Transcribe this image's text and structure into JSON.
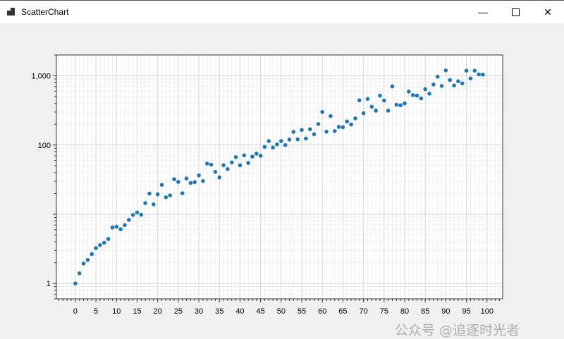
{
  "window": {
    "title": "ScatterChart",
    "minimize_icon": "minimize-icon",
    "maximize_icon": "maximize-icon",
    "close_icon": "close-icon"
  },
  "watermark": "公众号 @追逐时光者",
  "chart_data": {
    "type": "scatter",
    "title": "",
    "xlabel": "",
    "ylabel": "",
    "x_scale": "linear",
    "y_scale": "log",
    "xlim": [
      -4.6,
      103.8
    ],
    "ylim": [
      0.6,
      2000
    ],
    "x_ticks": [
      0,
      5,
      10,
      15,
      20,
      25,
      30,
      35,
      40,
      45,
      50,
      55,
      60,
      65,
      70,
      75,
      80,
      85,
      90,
      95,
      100
    ],
    "x_tick_labels": [
      "0",
      "5",
      "10",
      "15",
      "20",
      "25",
      "30",
      "35",
      "40",
      "45",
      "50",
      "55",
      "60",
      "65",
      "70",
      "75",
      "80",
      "85",
      "90",
      "95",
      "100"
    ],
    "y_ticks": [
      1,
      100,
      1000
    ],
    "y_tick_labels": [
      "1",
      "100",
      "1,000"
    ],
    "grid": true,
    "marker_color": "#1f77b4",
    "x": [
      0,
      1,
      2,
      3,
      4,
      5,
      6,
      7,
      8,
      9,
      10,
      11,
      12,
      13,
      14,
      15,
      16,
      17,
      18,
      19,
      20,
      21,
      22,
      23,
      24,
      25,
      26,
      27,
      28,
      29,
      30,
      31,
      32,
      33,
      34,
      35,
      36,
      37,
      38,
      39,
      40,
      41,
      42,
      43,
      44,
      45,
      46,
      47,
      48,
      49,
      50,
      51,
      52,
      53,
      54,
      55,
      56,
      57,
      58,
      59,
      60,
      61,
      62,
      63,
      64,
      65,
      66,
      67,
      68,
      69,
      70,
      71,
      72,
      73,
      74,
      75,
      76,
      77,
      78,
      79,
      80,
      81,
      82,
      83,
      84,
      85,
      86,
      87,
      88,
      89,
      90,
      91,
      92,
      93,
      94,
      95,
      96,
      97,
      98,
      99
    ],
    "y": [
      1,
      1.4,
      1.94,
      2.19,
      2.66,
      3.24,
      3.58,
      3.88,
      4.39,
      6.44,
      6.6,
      6.06,
      6.98,
      8.28,
      9.77,
      10.6,
      9.84,
      14.5,
      19.9,
      13.9,
      19.4,
      26.6,
      17.6,
      18.7,
      32.1,
      29.3,
      20.1,
      32.9,
      28.3,
      29,
      36.4,
      30.2,
      54,
      52,
      41,
      34,
      51,
      45,
      56,
      67,
      51,
      71,
      55,
      68,
      75,
      70,
      94,
      114,
      92,
      102,
      114,
      100,
      120,
      155,
      121,
      165,
      124,
      169,
      143,
      201,
      300,
      156,
      262,
      159,
      183,
      181,
      219,
      198,
      243,
      443,
      288,
      464,
      358,
      314,
      518,
      439,
      314,
      703,
      382,
      375,
      400,
      592,
      526,
      518,
      471,
      640,
      552,
      749,
      970,
      714,
      1199,
      868,
      725,
      834,
      778,
      1187,
      917,
      1187,
      1048,
      1040
    ]
  }
}
